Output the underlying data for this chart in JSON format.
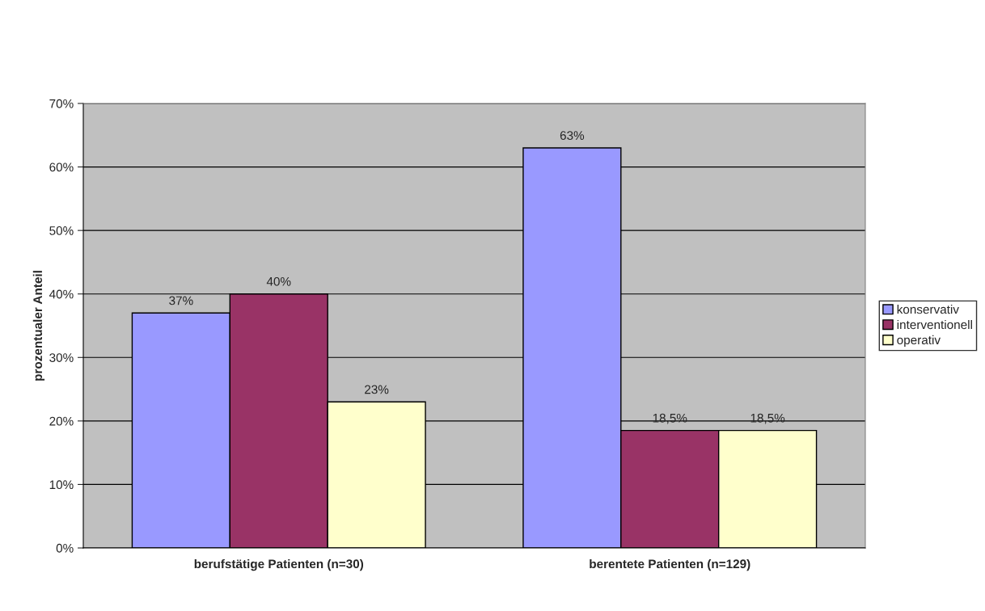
{
  "chart_data": {
    "type": "bar",
    "ylabel": "prozentualer Anteil",
    "categories": [
      "berufstätige Patienten (n=30)",
      "berentete Patienten (n=129)"
    ],
    "series": [
      {
        "name": "konservativ",
        "color": "#9999ff",
        "values": [
          37,
          63
        ],
        "value_labels": [
          "37%",
          "63%"
        ]
      },
      {
        "name": "interventionell",
        "color": "#993366",
        "values": [
          40,
          18.5
        ],
        "value_labels": [
          "40%",
          "18,5%"
        ]
      },
      {
        "name": "operativ",
        "color": "#ffffcc",
        "values": [
          23,
          18.5
        ],
        "value_labels": [
          "23%",
          "18,5%"
        ]
      }
    ],
    "ylim": [
      0,
      70
    ],
    "yticks": [
      {
        "value": 0,
        "label": "0%"
      },
      {
        "value": 10,
        "label": "10%"
      },
      {
        "value": 20,
        "label": "20%"
      },
      {
        "value": 30,
        "label": "30%"
      },
      {
        "value": 40,
        "label": "40%"
      },
      {
        "value": 50,
        "label": "50%"
      },
      {
        "value": 60,
        "label": "60%"
      },
      {
        "value": 70,
        "label": "70%"
      }
    ],
    "grid": "y",
    "legend": "right"
  }
}
